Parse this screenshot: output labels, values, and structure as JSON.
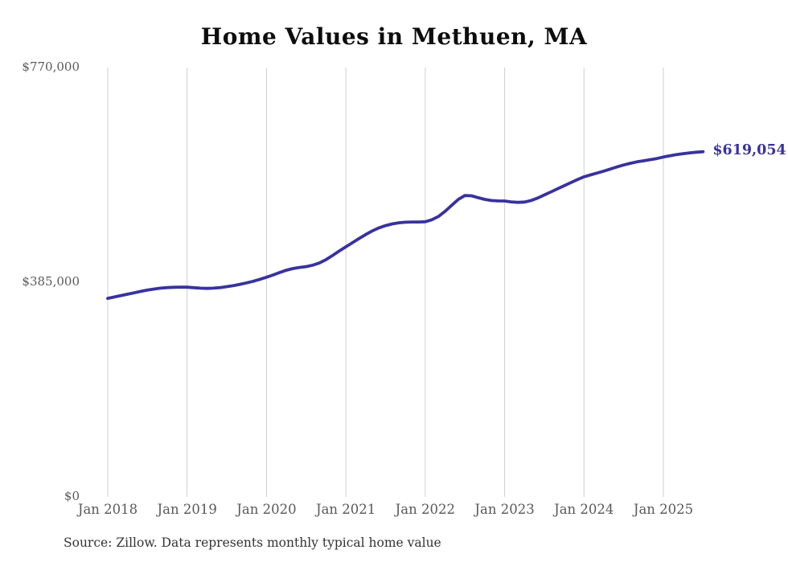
{
  "title": "Home Values in Methuen, MA",
  "source_note": "Source: Zillow. Data represents monthly typical home value",
  "colors": {
    "line": "#38329e",
    "end_label": "#38329e",
    "grid": "#cfcfcf",
    "axis_text": "#58595b",
    "title_text": "#0d0d0d",
    "source_text": "#333333",
    "background": "#ffffff"
  },
  "chart_data": {
    "type": "line",
    "title": "Home Values in Methuen, MA",
    "xlabel": "",
    "ylabel": "",
    "x_start": "2018-01",
    "x_interval": "month",
    "ylim": [
      0,
      770000
    ],
    "grid": "vertical-only",
    "legend": "none",
    "y_ticks": [
      {
        "label": "$0",
        "value": 0
      },
      {
        "label": "$385,000",
        "value": 385000
      },
      {
        "label": "$770,000",
        "value": 770000
      }
    ],
    "x_ticks": [
      {
        "label": "Jan 2018",
        "month_index": 0
      },
      {
        "label": "Jan 2019",
        "month_index": 12
      },
      {
        "label": "Jan 2020",
        "month_index": 24
      },
      {
        "label": "Jan 2021",
        "month_index": 36
      },
      {
        "label": "Jan 2022",
        "month_index": 48
      },
      {
        "label": "Jan 2023",
        "month_index": 60
      },
      {
        "label": "Jan 2024",
        "month_index": 72
      },
      {
        "label": "Jan 2025",
        "month_index": 84
      }
    ],
    "series": [
      {
        "name": "Typical home value",
        "values": [
          356000,
          358500,
          361000,
          363500,
          366000,
          368500,
          370800,
          372800,
          374300,
          375300,
          375900,
          376200,
          376000,
          375200,
          374300,
          373900,
          374300,
          375400,
          377000,
          379000,
          381300,
          383800,
          386800,
          390200,
          394000,
          398000,
          402500,
          406500,
          409500,
          411500,
          413000,
          415500,
          419500,
          425500,
          433000,
          441000,
          448500,
          456000,
          463500,
          470500,
          477000,
          482500,
          486500,
          489500,
          491500,
          492500,
          493000,
          493000,
          493500,
          497000,
          503000,
          512000,
          523000,
          533500,
          540500,
          540000,
          536500,
          533500,
          531500,
          530800,
          530700,
          529000,
          528200,
          528800,
          531500,
          536000,
          541500,
          547000,
          552500,
          558000,
          563500,
          569000,
          574000,
          577500,
          580800,
          584300,
          588000,
          591800,
          595300,
          598300,
          600800,
          602800,
          604800,
          606800,
          609500,
          611800,
          613800,
          615600,
          617000,
          618200,
          619054
        ]
      }
    ],
    "last_point": {
      "month": "2025-07",
      "value": 619054,
      "label": "$619,054"
    }
  }
}
